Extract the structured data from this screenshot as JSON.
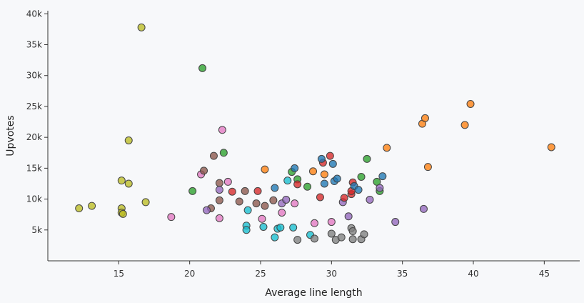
{
  "chart_data": {
    "type": "scatter",
    "title": "",
    "xlabel": "Average line length",
    "ylabel": "Upvotes",
    "xlim": [
      10,
      47.5
    ],
    "ylim": [
      0,
      40500
    ],
    "x_ticks": [
      15,
      20,
      25,
      30,
      35,
      40,
      45
    ],
    "x_tick_labels": [
      "15",
      "20",
      "25",
      "30",
      "35",
      "40",
      "45"
    ],
    "y_ticks": [
      5000,
      10000,
      15000,
      20000,
      25000,
      30000,
      35000,
      40000
    ],
    "y_tick_labels": [
      "5k",
      "10k",
      "15k",
      "20k",
      "25k",
      "30k",
      "35k",
      "40k"
    ],
    "grid": false,
    "legend": "none",
    "points": [
      {
        "x": 12.2,
        "y": 8500,
        "color": "#bcbd22"
      },
      {
        "x": 13.1,
        "y": 8900,
        "color": "#bcbd22"
      },
      {
        "x": 15.2,
        "y": 8500,
        "color": "#bcbd22"
      },
      {
        "x": 15.2,
        "y": 7800,
        "color": "#bcbd22"
      },
      {
        "x": 15.3,
        "y": 7600,
        "color": "#bcbd22"
      },
      {
        "x": 15.2,
        "y": 13000,
        "color": "#bcbd22"
      },
      {
        "x": 15.7,
        "y": 12500,
        "color": "#bcbd22"
      },
      {
        "x": 15.7,
        "y": 19500,
        "color": "#bcbd22"
      },
      {
        "x": 16.6,
        "y": 37800,
        "color": "#bcbd22"
      },
      {
        "x": 16.9,
        "y": 9500,
        "color": "#bcbd22"
      },
      {
        "x": 20.2,
        "y": 11300,
        "color": "#2ca02c"
      },
      {
        "x": 20.9,
        "y": 31200,
        "color": "#2ca02c"
      },
      {
        "x": 22.4,
        "y": 17500,
        "color": "#2ca02c"
      },
      {
        "x": 27.2,
        "y": 14400,
        "color": "#2ca02c"
      },
      {
        "x": 27.6,
        "y": 13200,
        "color": "#2ca02c"
      },
      {
        "x": 28.3,
        "y": 12000,
        "color": "#2ca02c"
      },
      {
        "x": 32.1,
        "y": 13600,
        "color": "#2ca02c"
      },
      {
        "x": 32.5,
        "y": 16500,
        "color": "#2ca02c"
      },
      {
        "x": 33.2,
        "y": 12800,
        "color": "#2ca02c"
      },
      {
        "x": 33.4,
        "y": 11300,
        "color": "#2ca02c"
      },
      {
        "x": 18.7,
        "y": 7100,
        "color": "#e377c2"
      },
      {
        "x": 20.8,
        "y": 14000,
        "color": "#e377c2"
      },
      {
        "x": 22.3,
        "y": 21200,
        "color": "#e377c2"
      },
      {
        "x": 22.7,
        "y": 12800,
        "color": "#e377c2"
      },
      {
        "x": 22.1,
        "y": 6900,
        "color": "#e377c2"
      },
      {
        "x": 25.1,
        "y": 6800,
        "color": "#e377c2"
      },
      {
        "x": 26.5,
        "y": 7800,
        "color": "#e377c2"
      },
      {
        "x": 27.4,
        "y": 9300,
        "color": "#e377c2"
      },
      {
        "x": 28.8,
        "y": 6100,
        "color": "#e377c2"
      },
      {
        "x": 30.0,
        "y": 6300,
        "color": "#e377c2"
      },
      {
        "x": 21.0,
        "y": 14600,
        "color": "#8c564b"
      },
      {
        "x": 21.7,
        "y": 17000,
        "color": "#8c564b"
      },
      {
        "x": 22.1,
        "y": 12600,
        "color": "#8c564b"
      },
      {
        "x": 21.5,
        "y": 8500,
        "color": "#8c564b"
      },
      {
        "x": 22.1,
        "y": 9800,
        "color": "#8c564b"
      },
      {
        "x": 23.5,
        "y": 9600,
        "color": "#8c564b"
      },
      {
        "x": 23.9,
        "y": 11300,
        "color": "#8c564b"
      },
      {
        "x": 24.7,
        "y": 9300,
        "color": "#8c564b"
      },
      {
        "x": 25.3,
        "y": 8900,
        "color": "#8c564b"
      },
      {
        "x": 25.9,
        "y": 9800,
        "color": "#8c564b"
      },
      {
        "x": 21.2,
        "y": 8200,
        "color": "#9467bd"
      },
      {
        "x": 22.1,
        "y": 11500,
        "color": "#9467bd"
      },
      {
        "x": 26.5,
        "y": 9300,
        "color": "#9467bd"
      },
      {
        "x": 26.8,
        "y": 9900,
        "color": "#9467bd"
      },
      {
        "x": 30.8,
        "y": 9500,
        "color": "#9467bd"
      },
      {
        "x": 31.2,
        "y": 7200,
        "color": "#9467bd"
      },
      {
        "x": 32.7,
        "y": 9900,
        "color": "#9467bd"
      },
      {
        "x": 33.4,
        "y": 11800,
        "color": "#9467bd"
      },
      {
        "x": 34.5,
        "y": 6300,
        "color": "#9467bd"
      },
      {
        "x": 36.5,
        "y": 8400,
        "color": "#9467bd"
      },
      {
        "x": 23.0,
        "y": 11200,
        "color": "#d62728"
      },
      {
        "x": 24.8,
        "y": 11300,
        "color": "#d62728"
      },
      {
        "x": 27.6,
        "y": 12400,
        "color": "#d62728"
      },
      {
        "x": 29.2,
        "y": 10300,
        "color": "#d62728"
      },
      {
        "x": 29.4,
        "y": 15900,
        "color": "#d62728"
      },
      {
        "x": 29.9,
        "y": 17000,
        "color": "#d62728"
      },
      {
        "x": 30.9,
        "y": 10200,
        "color": "#d62728"
      },
      {
        "x": 31.4,
        "y": 10800,
        "color": "#d62728"
      },
      {
        "x": 31.4,
        "y": 11300,
        "color": "#d62728"
      },
      {
        "x": 31.5,
        "y": 12700,
        "color": "#d62728"
      },
      {
        "x": 24.1,
        "y": 8200,
        "color": "#17becf"
      },
      {
        "x": 24.0,
        "y": 5700,
        "color": "#17becf"
      },
      {
        "x": 24.0,
        "y": 5000,
        "color": "#17becf"
      },
      {
        "x": 25.2,
        "y": 5500,
        "color": "#17becf"
      },
      {
        "x": 26.0,
        "y": 3800,
        "color": "#17becf"
      },
      {
        "x": 26.2,
        "y": 5200,
        "color": "#17becf"
      },
      {
        "x": 26.4,
        "y": 5400,
        "color": "#17becf"
      },
      {
        "x": 26.9,
        "y": 13000,
        "color": "#17becf"
      },
      {
        "x": 27.3,
        "y": 5400,
        "color": "#17becf"
      },
      {
        "x": 28.5,
        "y": 4200,
        "color": "#17becf"
      },
      {
        "x": 25.3,
        "y": 14800,
        "color": "#ff7f0e"
      },
      {
        "x": 28.7,
        "y": 14500,
        "color": "#ff7f0e"
      },
      {
        "x": 29.5,
        "y": 14000,
        "color": "#ff7f0e"
      },
      {
        "x": 33.9,
        "y": 18300,
        "color": "#ff7f0e"
      },
      {
        "x": 36.4,
        "y": 22200,
        "color": "#ff7f0e"
      },
      {
        "x": 36.6,
        "y": 23100,
        "color": "#ff7f0e"
      },
      {
        "x": 36.8,
        "y": 15200,
        "color": "#ff7f0e"
      },
      {
        "x": 39.4,
        "y": 22000,
        "color": "#ff7f0e"
      },
      {
        "x": 39.8,
        "y": 25400,
        "color": "#ff7f0e"
      },
      {
        "x": 45.5,
        "y": 18400,
        "color": "#ff7f0e"
      },
      {
        "x": 26.0,
        "y": 11800,
        "color": "#1f77b4"
      },
      {
        "x": 27.4,
        "y": 15000,
        "color": "#1f77b4"
      },
      {
        "x": 29.3,
        "y": 16500,
        "color": "#1f77b4"
      },
      {
        "x": 29.5,
        "y": 12500,
        "color": "#1f77b4"
      },
      {
        "x": 30.1,
        "y": 15700,
        "color": "#1f77b4"
      },
      {
        "x": 30.2,
        "y": 12900,
        "color": "#1f77b4"
      },
      {
        "x": 30.4,
        "y": 13300,
        "color": "#1f77b4"
      },
      {
        "x": 31.6,
        "y": 12100,
        "color": "#1f77b4"
      },
      {
        "x": 31.9,
        "y": 11500,
        "color": "#1f77b4"
      },
      {
        "x": 33.6,
        "y": 13700,
        "color": "#1f77b4"
      },
      {
        "x": 27.6,
        "y": 3400,
        "color": "#7f7f7f"
      },
      {
        "x": 28.8,
        "y": 3600,
        "color": "#7f7f7f"
      },
      {
        "x": 30.0,
        "y": 4400,
        "color": "#7f7f7f"
      },
      {
        "x": 30.3,
        "y": 3400,
        "color": "#7f7f7f"
      },
      {
        "x": 30.7,
        "y": 3800,
        "color": "#7f7f7f"
      },
      {
        "x": 31.4,
        "y": 5300,
        "color": "#7f7f7f"
      },
      {
        "x": 31.5,
        "y": 3500,
        "color": "#7f7f7f"
      },
      {
        "x": 31.5,
        "y": 4800,
        "color": "#7f7f7f"
      },
      {
        "x": 32.1,
        "y": 3500,
        "color": "#7f7f7f"
      },
      {
        "x": 32.3,
        "y": 4300,
        "color": "#7f7f7f"
      }
    ]
  }
}
